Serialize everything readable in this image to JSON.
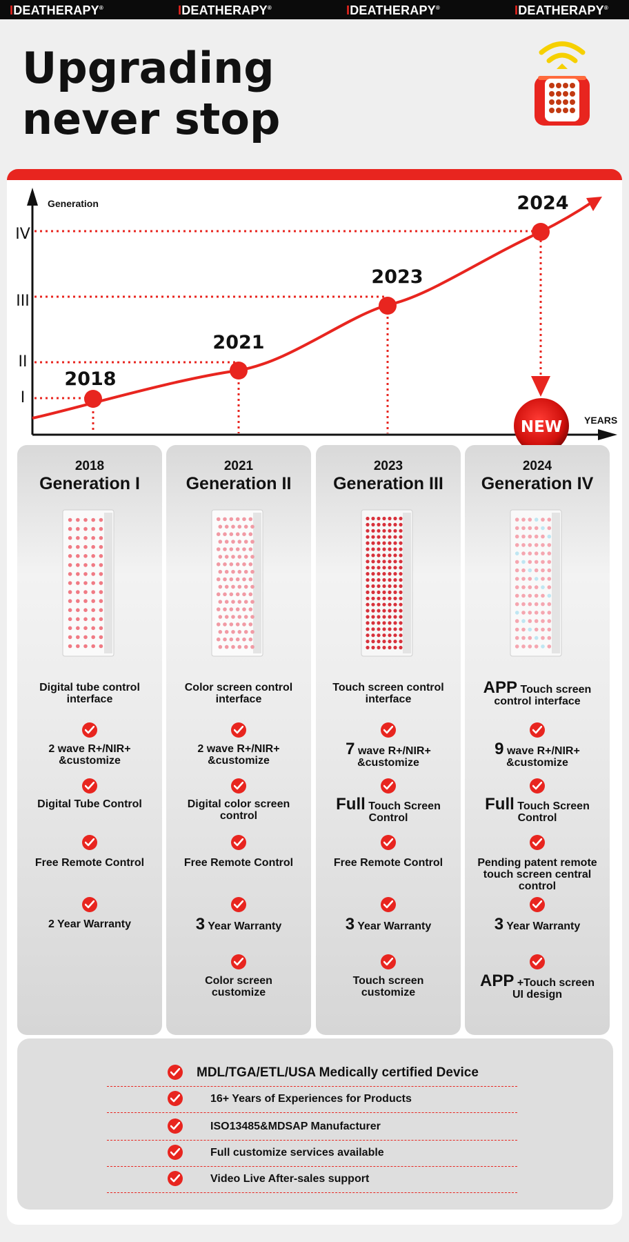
{
  "brand": {
    "prefix": "I",
    "name": "DEATHERAPY",
    "mark": "®"
  },
  "headline": {
    "line1": "Upgrading",
    "line2": "never stop"
  },
  "timeline": {
    "axis_y_label": "Generation",
    "axis_x_label": "YEARS",
    "levels": [
      "I",
      "II",
      "III",
      "IV"
    ],
    "years": [
      "2018",
      "2021",
      "2023",
      "2024"
    ],
    "new_badge": "NEW"
  },
  "generations": [
    {
      "year": "2018",
      "title": "Generation I",
      "features": [
        {
          "big": "",
          "text": "Digital tube control interface"
        },
        {
          "big": "",
          "text": "2 wave R+/NIR+ &customize"
        },
        {
          "big": "",
          "text": "Digital Tube Control"
        },
        {
          "big": "",
          "text": "Free Remote Control"
        },
        {
          "big": "",
          "text": "2 Year Warranty"
        }
      ]
    },
    {
      "year": "2021",
      "title": "Generation II",
      "features": [
        {
          "big": "",
          "text": "Color screen control interface"
        },
        {
          "big": "",
          "text": "2 wave R+/NIR+ &customize"
        },
        {
          "big": "",
          "text": "Digital color screen control"
        },
        {
          "big": "",
          "text": "Free Remote Control"
        },
        {
          "big": "3",
          "text": "Year Warranty"
        },
        {
          "big": "",
          "text": "Color screen customize"
        }
      ]
    },
    {
      "year": "2023",
      "title": "Generation III",
      "features": [
        {
          "big": "",
          "text": "Touch screen control interface"
        },
        {
          "big": "7",
          "text": "wave R+/NIR+ &customize"
        },
        {
          "big": "Full",
          "text": "Touch Screen Control"
        },
        {
          "big": "",
          "text": "Free Remote Control"
        },
        {
          "big": "3",
          "text": "Year Warranty"
        },
        {
          "big": "",
          "text": "Touch screen customize"
        }
      ]
    },
    {
      "year": "2024",
      "title": "Generation IV",
      "features": [
        {
          "big": "APP",
          "text": "Touch screen control interface"
        },
        {
          "big": "9",
          "text": "wave R+/NIR+ &customize"
        },
        {
          "big": "Full",
          "text": "Touch Screen Control"
        },
        {
          "big": "",
          "text": "Pending patent remote touch screen central control"
        },
        {
          "big": "3",
          "text": "Year Warranty"
        },
        {
          "big": "APP",
          "text": "+Touch screen UI design"
        }
      ]
    }
  ],
  "certifications": [
    "MDL/TGA/ETL/USA Medically certified Device",
    "16+ Years of Experiences for Products",
    "ISO13485&MDSAP Manufacturer",
    "Full customize services available",
    "Video Live After-sales support"
  ],
  "colors": {
    "accent": "#e8251f",
    "dark": "#111111",
    "panel_bg": "#e3e3e3"
  }
}
